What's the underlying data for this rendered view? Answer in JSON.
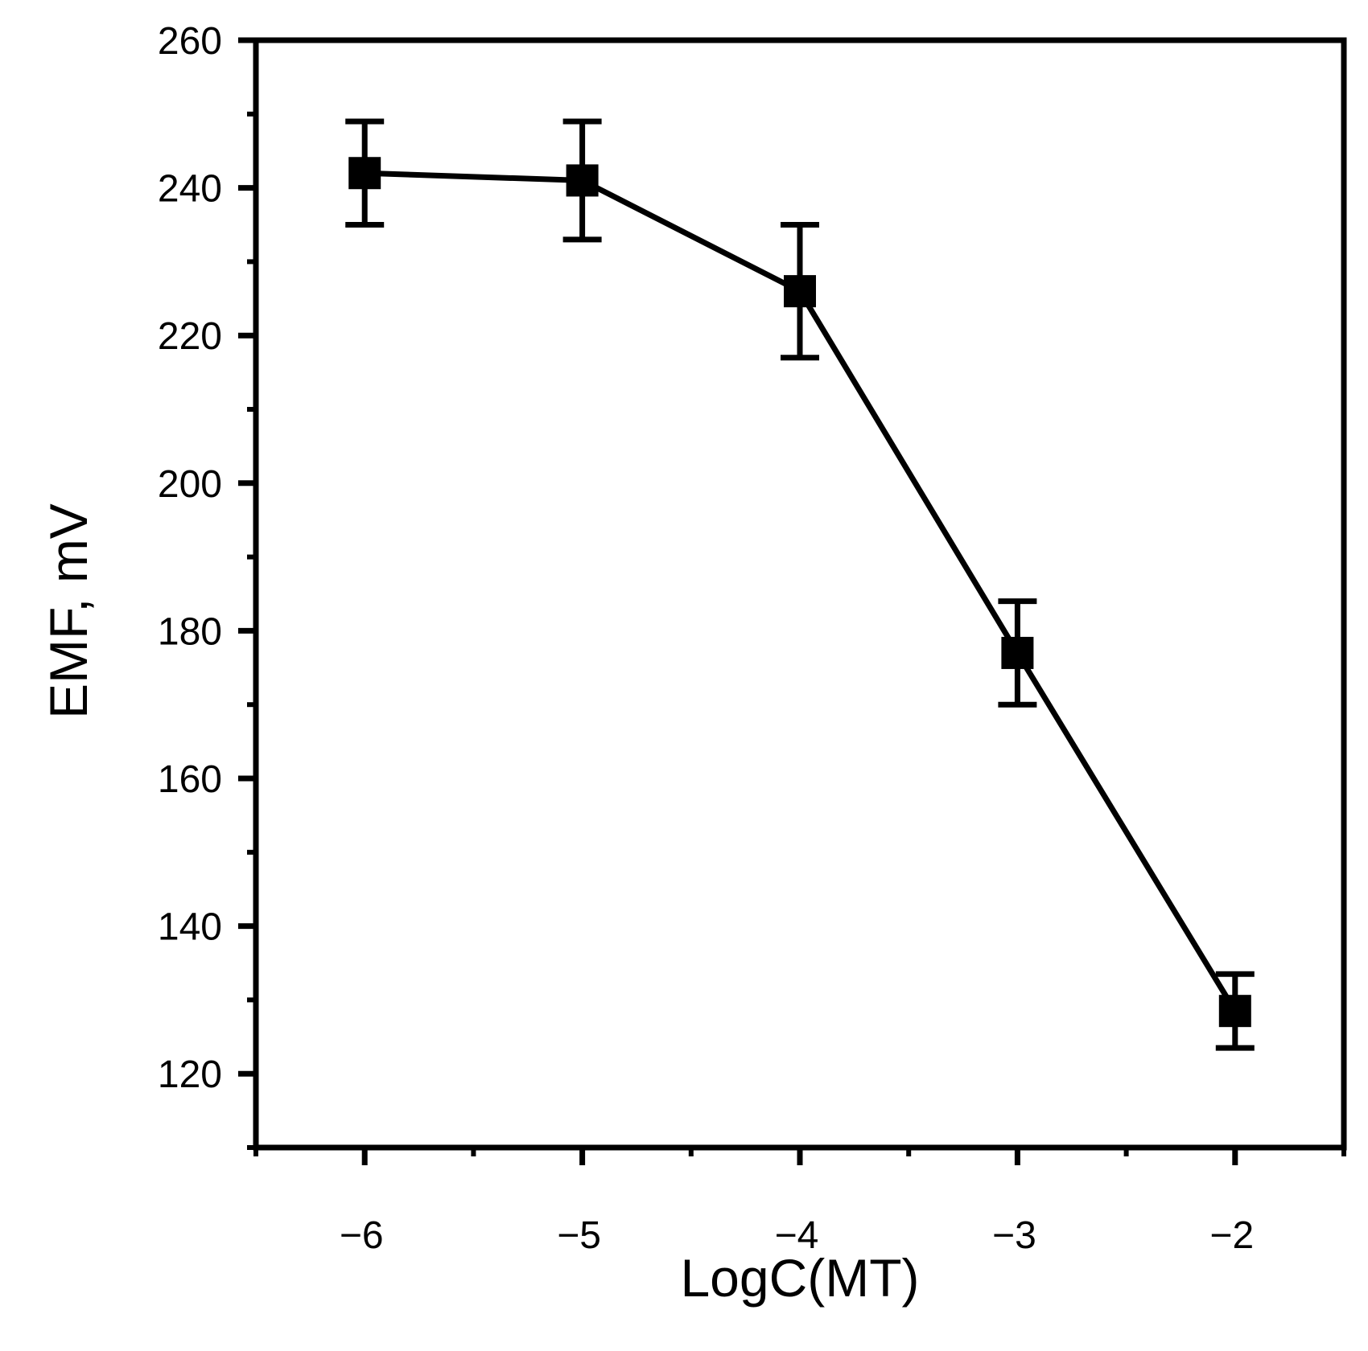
{
  "chart_data": {
    "type": "line",
    "xlabel": "LogC(MT)",
    "ylabel": "EMF, mV",
    "xlim": [
      -6.5,
      -1.5
    ],
    "ylim": [
      110,
      260
    ],
    "x_ticks": [
      -6,
      -5,
      -4,
      -3,
      -2
    ],
    "x_tick_labels": [
      "−6",
      "−5",
      "−4",
      "−3",
      "−2"
    ],
    "y_ticks": [
      120,
      140,
      160,
      180,
      200,
      220,
      240,
      260
    ],
    "y_tick_labels": [
      "120",
      "140",
      "160",
      "180",
      "200",
      "220",
      "240",
      "260"
    ],
    "y_minor_ticks": [
      130,
      150,
      170,
      190,
      210,
      230,
      250
    ],
    "x_minor_ticks": [
      -5.5,
      -4.5,
      -3.5,
      -2.5
    ],
    "grid": false,
    "series": [
      {
        "marker": "square",
        "color": "#000000",
        "x": [
          -6,
          -5,
          -4,
          -3,
          -2
        ],
        "y": [
          242,
          241,
          226,
          177,
          128.5
        ],
        "error": [
          7,
          8,
          9,
          7,
          5
        ]
      }
    ]
  }
}
